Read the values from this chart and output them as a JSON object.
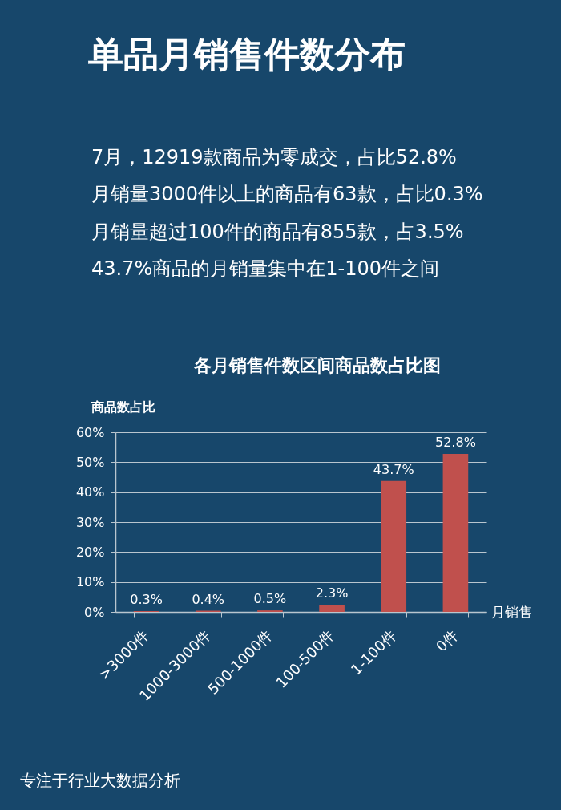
{
  "chart_data": {
    "type": "bar",
    "title": "单品月销售件数分布",
    "subtitle": "各月销售件数区间商品数占比图",
    "xlabel": "月销售",
    "ylabel": "商品数占比",
    "annotations": [
      "7月，12919款商品为零成交，占比52.8%",
      "月销量3000件以上的商品有63款，占比0.3%",
      "月销量超过100件的商品有855款，占3.5%",
      "43.7%商品的月销量集中在1-100件之间",
      "专注于行业大数据分析"
    ],
    "categories": [
      ">3000件",
      "1000-3000件",
      "500-1000件",
      "100-500件",
      "1-100件",
      "0件"
    ],
    "series": [
      {
        "color": "#c0504d",
        "values": [
          0.3,
          0.4,
          0.5,
          2.3,
          43.7,
          52.8
        ]
      }
    ],
    "value_labels": [
      "0.3%",
      "0.4%",
      "0.5%",
      "2.3%",
      "43.7%",
      "52.8%"
    ],
    "ylim": [
      0,
      60
    ],
    "yticks": [
      {
        "value": 0,
        "label": "0%"
      },
      {
        "value": 10,
        "label": "10%"
      },
      {
        "value": 20,
        "label": "20%"
      },
      {
        "value": 30,
        "label": "30%"
      },
      {
        "value": 40,
        "label": "40%"
      },
      {
        "value": 50,
        "label": "50%"
      },
      {
        "value": 60,
        "label": "60%"
      }
    ],
    "grid": "y",
    "legend": false
  }
}
